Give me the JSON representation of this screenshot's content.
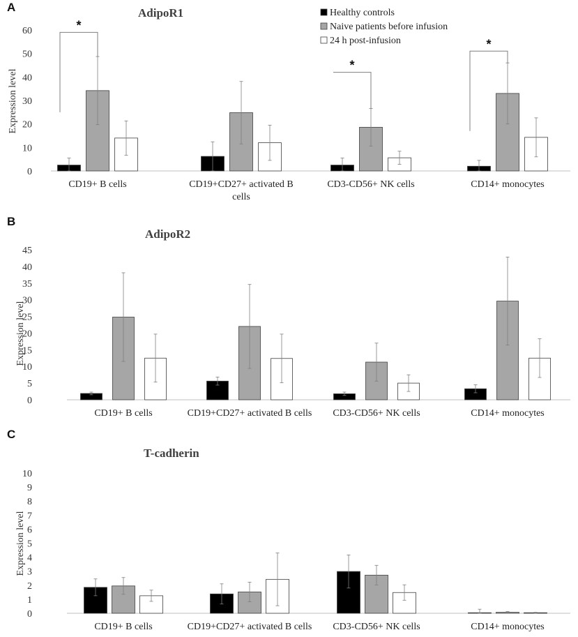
{
  "legend": {
    "items": [
      {
        "label": "Healthy controls",
        "fill": "#000000"
      },
      {
        "label": "Naive patients before infusion",
        "fill": "#a6a6a6"
      },
      {
        "label": "24 h post-infusion",
        "fill": "#ffffff"
      }
    ]
  },
  "chart_data": [
    {
      "panel": "A",
      "type": "bar",
      "title": "AdipoR1",
      "ylabel": "Expression level",
      "ylim": [
        0,
        60
      ],
      "yticks": [
        0,
        10,
        20,
        30,
        40,
        50,
        60
      ],
      "categories": [
        [
          "CD19+ B cells"
        ],
        [
          "CD19+CD27+ activated B",
          "cells"
        ],
        [
          "CD3-CD56+ NK cells"
        ],
        [
          "CD14+ monocytes"
        ]
      ],
      "series": [
        {
          "name": "Healthy controls",
          "values": [
            2.5,
            6.2,
            2.5,
            2.0
          ],
          "errors": [
            3.0,
            6.2,
            3.0,
            2.5
          ]
        },
        {
          "name": "Naive patients before infusion",
          "values": [
            34.2,
            24.8,
            18.6,
            33.0
          ],
          "errors": [
            14.5,
            13.3,
            8.0,
            13.0
          ]
        },
        {
          "name": "24 h post-infusion",
          "values": [
            14.0,
            12.0,
            5.6,
            14.3
          ],
          "errors": [
            7.3,
            7.5,
            2.8,
            8.3
          ]
        }
      ],
      "significance": [
        {
          "category": 0,
          "label": "*",
          "from_y": 25,
          "top_y": 59
        },
        {
          "category": 2,
          "label": "*",
          "from_y": 42,
          "top_y": 42
        },
        {
          "category": 3,
          "label": "*",
          "from_y": 17,
          "top_y": 51
        }
      ]
    },
    {
      "panel": "B",
      "type": "bar",
      "title": "AdipoR2",
      "ylabel": "Expression level",
      "ylim": [
        0,
        45
      ],
      "yticks": [
        0,
        5,
        10,
        15,
        20,
        25,
        30,
        35,
        40,
        45
      ],
      "categories": [
        [
          "CD19+ B cells"
        ],
        [
          "CD19+CD27+ activated B cells"
        ],
        [
          "CD3-CD56+ NK cells"
        ],
        [
          "CD14+ monocytes"
        ]
      ],
      "series": [
        {
          "name": "Healthy controls",
          "values": [
            1.9,
            5.6,
            1.8,
            3.3
          ],
          "errors": [
            0.4,
            1.2,
            0.5,
            1.2
          ]
        },
        {
          "name": "Naive patients before infusion",
          "values": [
            24.8,
            22.0,
            11.3,
            29.6
          ],
          "errors": [
            13.3,
            12.6,
            5.7,
            13.2
          ]
        },
        {
          "name": "24 h post-infusion",
          "values": [
            12.5,
            12.4,
            5.0,
            12.5
          ],
          "errors": [
            7.2,
            7.3,
            2.5,
            5.8
          ]
        }
      ],
      "significance": []
    },
    {
      "panel": "C",
      "type": "bar",
      "title": "T-cadherin",
      "ylabel": "Expression level",
      "ylim": [
        0,
        10
      ],
      "yticks": [
        0,
        1,
        2,
        3,
        4,
        5,
        6,
        7,
        8,
        9,
        10
      ],
      "categories": [
        [
          "CD19+ B cells"
        ],
        [
          "CD19+CD27+ activated B cells"
        ],
        [
          "CD3-CD56+ NK cells"
        ],
        [
          "CD14+ monocytes"
        ]
      ],
      "series": [
        {
          "name": "Healthy controls",
          "values": [
            1.85,
            1.38,
            2.98,
            0.04
          ],
          "errors": [
            0.6,
            0.72,
            1.18,
            0.25
          ]
        },
        {
          "name": "Naive patients before infusion",
          "values": [
            1.95,
            1.52,
            2.72,
            0.07
          ],
          "errors": [
            0.6,
            0.7,
            0.7,
            0.05
          ]
        },
        {
          "name": "24 h post-infusion",
          "values": [
            1.25,
            2.42,
            1.48,
            0.04
          ],
          "errors": [
            0.4,
            1.88,
            0.55,
            0.03
          ]
        }
      ],
      "significance": []
    }
  ]
}
